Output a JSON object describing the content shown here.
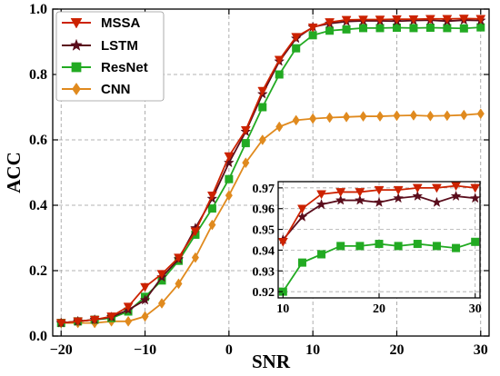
{
  "chart_data": {
    "type": "line",
    "xlabel": "SNR",
    "ylabel": "ACC",
    "xlim": [
      -21,
      31
    ],
    "ylim": [
      0,
      1.0
    ],
    "xticks": [
      -20,
      -10,
      0,
      10,
      20,
      30
    ],
    "yticks": [
      0.0,
      0.2,
      0.4,
      0.6,
      0.8,
      1.0
    ],
    "xtick_labels": [
      "−20",
      "−10",
      "0",
      "10",
      "20",
      "30"
    ],
    "ytick_labels": [
      "0.0",
      "0.2",
      "0.4",
      "0.6",
      "0.8",
      "1.0"
    ],
    "grid": "dashed",
    "legend_position": "top-left",
    "x": [
      -20,
      -18,
      -16,
      -14,
      -12,
      -10,
      -8,
      -6,
      -4,
      -2,
      0,
      2,
      4,
      6,
      8,
      10,
      12,
      14,
      16,
      18,
      20,
      22,
      24,
      26,
      28,
      30
    ],
    "series": [
      {
        "name": "MSSA",
        "color": "#cc2200",
        "marker": "triangle-down",
        "values": [
          0.04,
          0.045,
          0.05,
          0.06,
          0.09,
          0.15,
          0.19,
          0.24,
          0.32,
          0.43,
          0.55,
          0.63,
          0.75,
          0.845,
          0.915,
          0.944,
          0.96,
          0.967,
          0.968,
          0.968,
          0.969,
          0.969,
          0.97,
          0.97,
          0.971,
          0.97
        ]
      },
      {
        "name": "LSTM",
        "color": "#5a0d1c",
        "marker": "star",
        "values": [
          0.04,
          0.045,
          0.05,
          0.058,
          0.08,
          0.11,
          0.18,
          0.235,
          0.33,
          0.42,
          0.53,
          0.625,
          0.74,
          0.84,
          0.91,
          0.945,
          0.956,
          0.962,
          0.964,
          0.964,
          0.963,
          0.965,
          0.966,
          0.963,
          0.966,
          0.965
        ]
      },
      {
        "name": "ResNet",
        "color": "#22aa22",
        "marker": "square",
        "values": [
          0.04,
          0.045,
          0.05,
          0.055,
          0.075,
          0.12,
          0.17,
          0.23,
          0.31,
          0.39,
          0.48,
          0.59,
          0.7,
          0.8,
          0.88,
          0.92,
          0.934,
          0.938,
          0.942,
          0.942,
          0.943,
          0.942,
          0.943,
          0.942,
          0.941,
          0.944
        ]
      },
      {
        "name": "CNN",
        "color": "#e08a1e",
        "marker": "diamond",
        "values": [
          0.04,
          0.04,
          0.04,
          0.045,
          0.045,
          0.06,
          0.1,
          0.16,
          0.24,
          0.34,
          0.43,
          0.53,
          0.6,
          0.64,
          0.66,
          0.665,
          0.668,
          0.67,
          0.672,
          0.672,
          0.674,
          0.675,
          0.673,
          0.674,
          0.676,
          0.68
        ]
      }
    ],
    "inset": {
      "xlim": [
        9.5,
        30.5
      ],
      "ylim": [
        0.917,
        0.973
      ],
      "xticks": [
        10,
        20,
        30
      ],
      "xtick_labels": [
        "10",
        "20",
        "30"
      ],
      "yticks": [
        0.92,
        0.93,
        0.94,
        0.95,
        0.96,
        0.97
      ],
      "ytick_labels": [
        "0.92",
        "0.93",
        "0.94",
        "0.95",
        "0.96",
        "0.97"
      ],
      "series_shown": [
        "MSSA",
        "LSTM",
        "ResNet"
      ]
    }
  }
}
